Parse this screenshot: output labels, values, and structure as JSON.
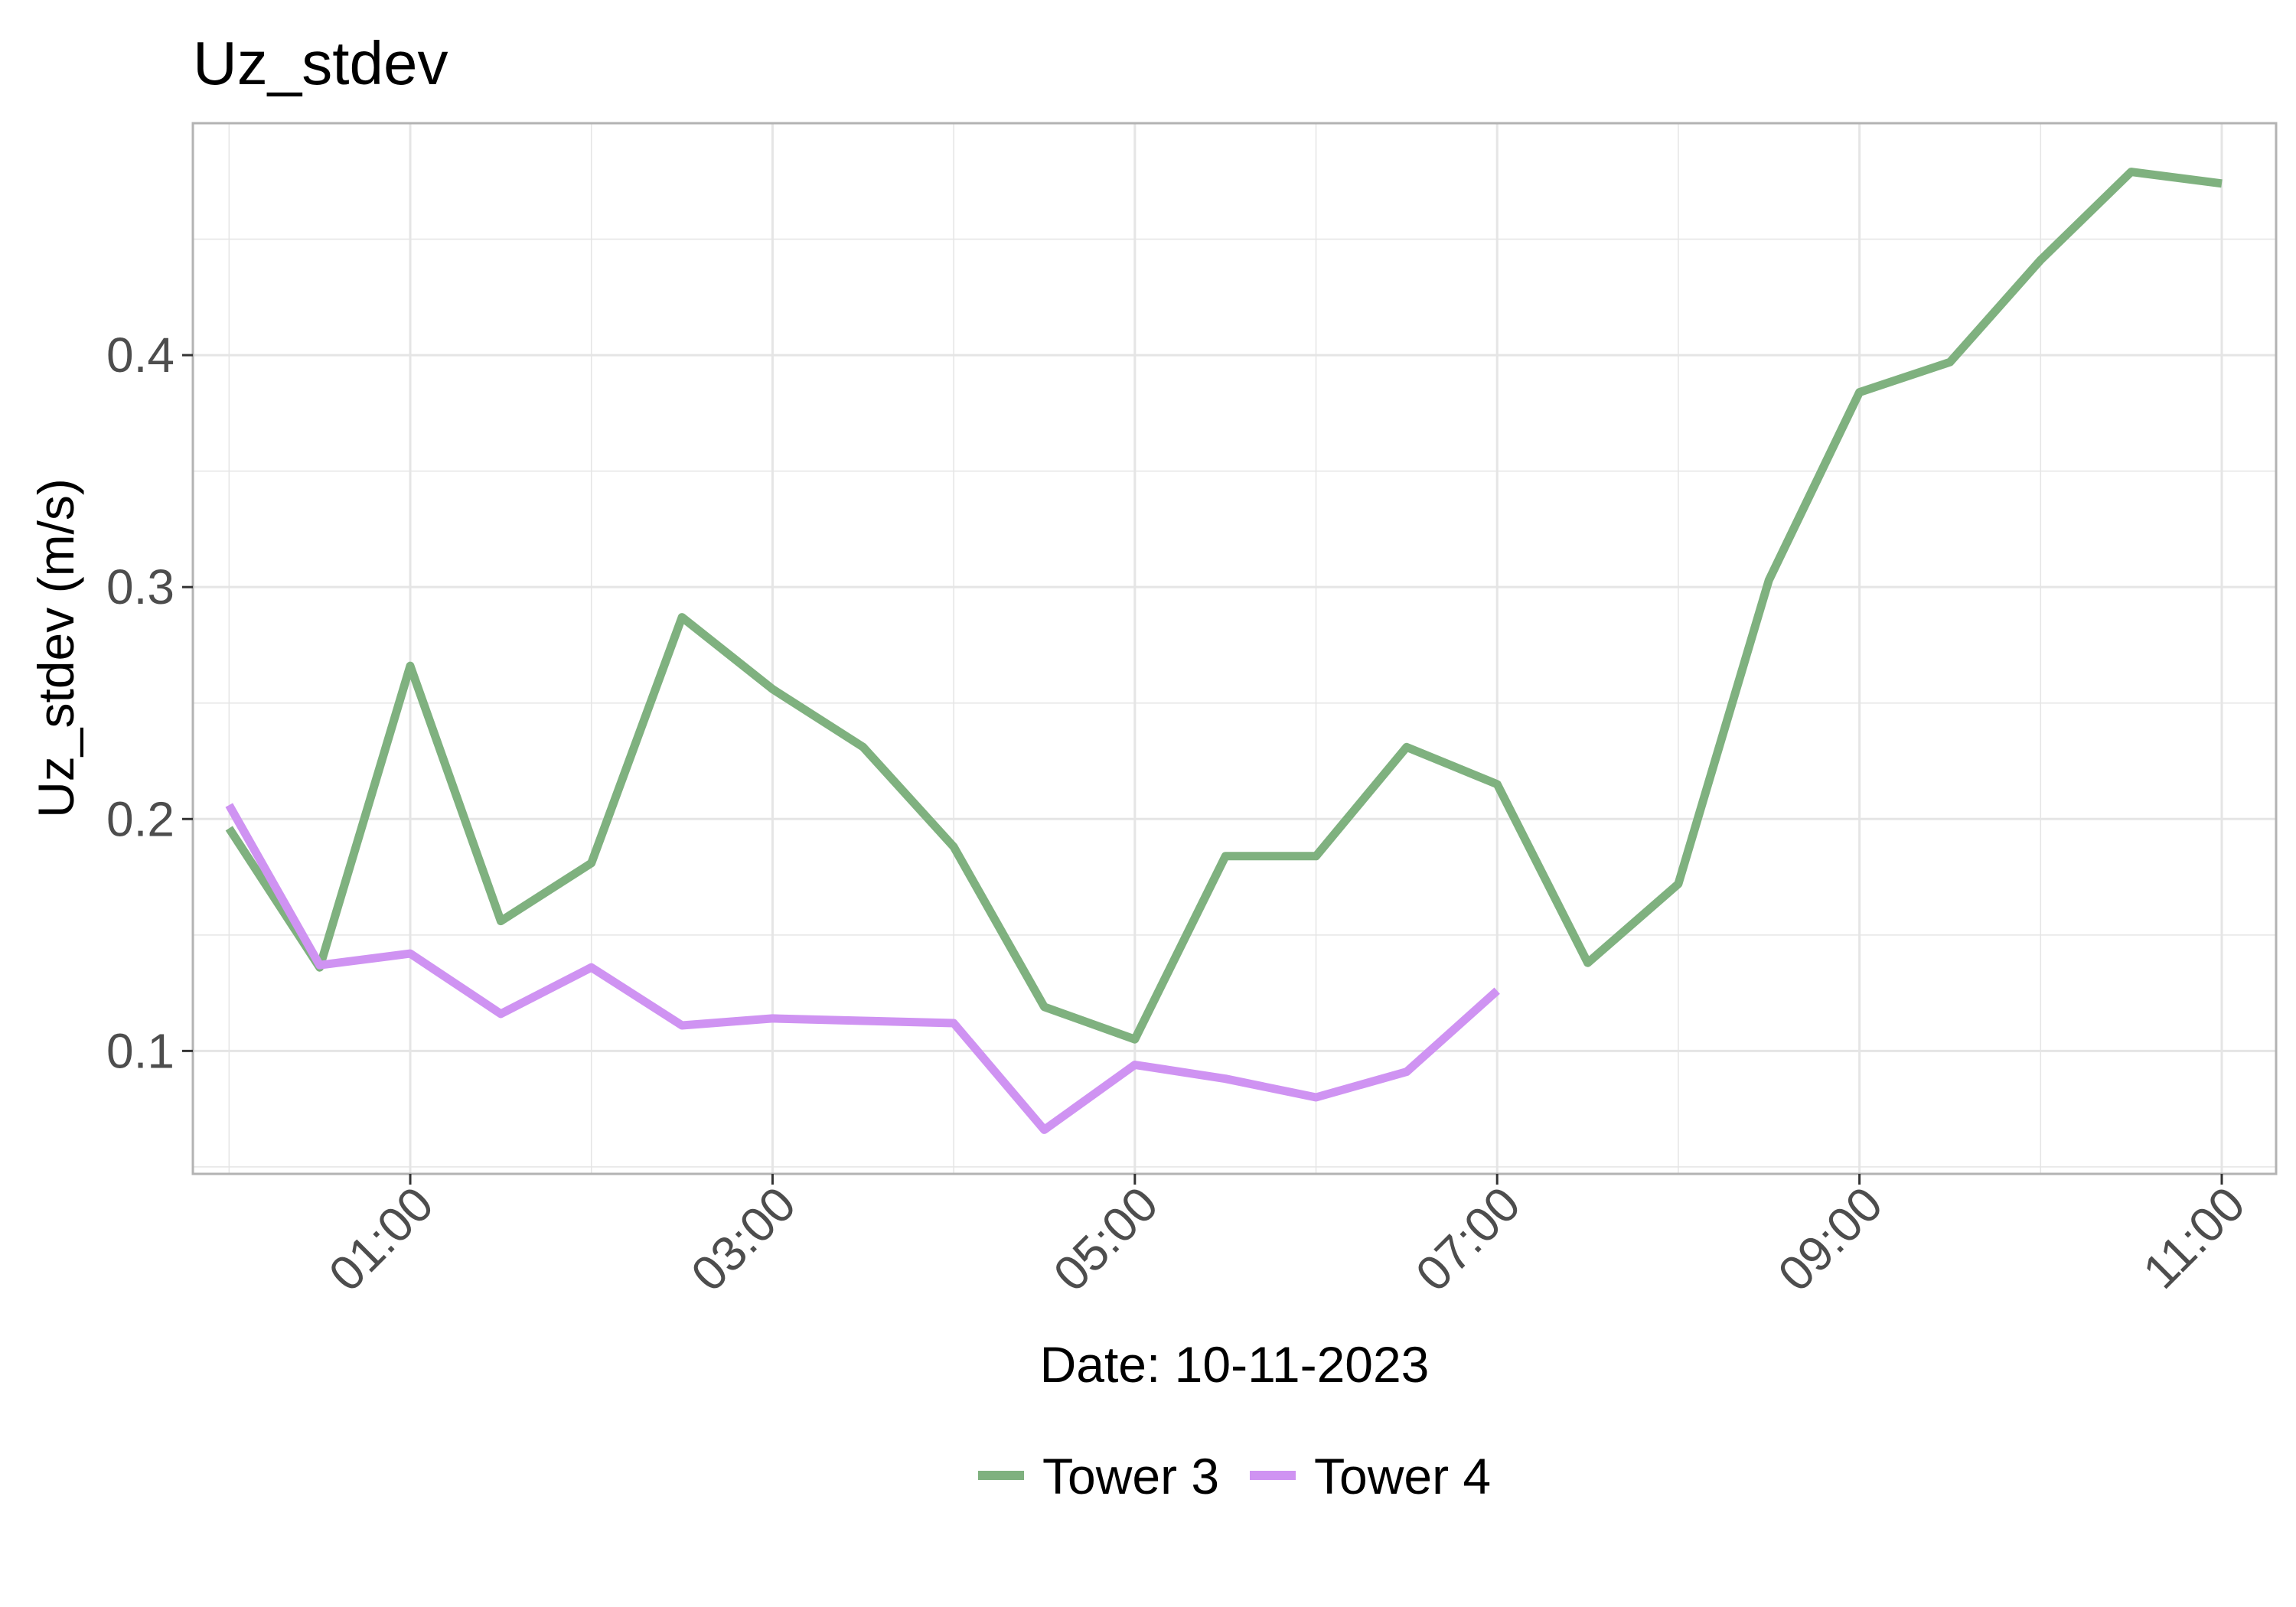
{
  "chart_data": {
    "type": "line",
    "title": "Uz_stdev",
    "xlabel": "Date: 10-11-2023",
    "ylabel": "Uz_stdev (m/s)",
    "x_unit": "time of day (hours)",
    "xlim": [
      -0.2,
      11.3
    ],
    "ylim": [
      0.047,
      0.5
    ],
    "x_ticks": [
      {
        "value": 1,
        "label": "01:00"
      },
      {
        "value": 3,
        "label": "03:00"
      },
      {
        "value": 5,
        "label": "05:00"
      },
      {
        "value": 7,
        "label": "07:00"
      },
      {
        "value": 9,
        "label": "09:00"
      },
      {
        "value": 11,
        "label": "11:00"
      }
    ],
    "y_ticks": [
      {
        "value": 0.1,
        "label": "0.1"
      },
      {
        "value": 0.2,
        "label": "0.2"
      },
      {
        "value": 0.3,
        "label": "0.3"
      },
      {
        "value": 0.4,
        "label": "0.4"
      }
    ],
    "grid": true,
    "legend_position": "bottom",
    "series": [
      {
        "name": "Tower 3",
        "color": "#7fb17f",
        "x": [
          0,
          0.5,
          1,
          1.5,
          2,
          2.5,
          3,
          3.5,
          4,
          4.5,
          5,
          5.5,
          6,
          6.5,
          7,
          7.5,
          8,
          8.5,
          9,
          9.5,
          10,
          10.5,
          11
        ],
        "y": [
          0.196,
          0.136,
          0.266,
          0.156,
          0.181,
          0.287,
          0.256,
          0.231,
          0.188,
          0.119,
          0.105,
          0.184,
          0.184,
          0.231,
          0.215,
          0.138,
          0.172,
          0.303,
          0.384,
          0.397,
          0.441,
          0.479,
          0.474
        ]
      },
      {
        "name": "Tower 4",
        "color": "#cf93f2",
        "x": [
          0,
          0.5,
          1,
          1.5,
          2,
          2.5,
          3,
          3.5,
          4,
          4.5,
          5,
          5.5,
          6,
          6.5,
          7
        ],
        "y": [
          0.206,
          0.137,
          0.142,
          0.116,
          0.136,
          0.111,
          0.114,
          0.113,
          0.112,
          0.066,
          0.094,
          0.088,
          0.08,
          0.091,
          0.126
        ]
      }
    ]
  }
}
